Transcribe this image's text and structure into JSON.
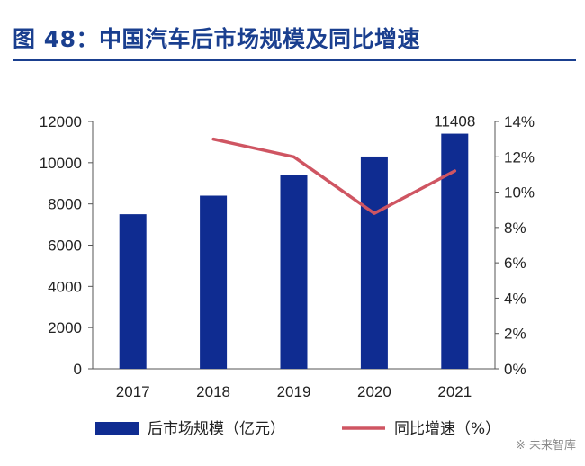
{
  "title": "图 48：中国汽车后市场规模及同比增速",
  "watermark": "未来智库",
  "colors": {
    "title": "#1a3f8f",
    "bar": "#0f2c91",
    "line": "#cf5562",
    "axis": "#555555"
  },
  "chart_data": {
    "type": "bar",
    "categories": [
      "2017",
      "2018",
      "2019",
      "2020",
      "2021"
    ],
    "series": [
      {
        "name": "后市场规模（亿元）",
        "type": "bar",
        "axis": "left",
        "values": [
          7500,
          8400,
          9400,
          10300,
          11408
        ]
      },
      {
        "name": "同比增速（%）",
        "type": "line",
        "axis": "right",
        "values": [
          null,
          13.0,
          12.0,
          8.8,
          11.2
        ]
      }
    ],
    "data_labels": [
      {
        "series": 0,
        "index": 4,
        "text": "11408"
      }
    ],
    "y_left": {
      "lim": [
        0,
        12000
      ],
      "ticks": [
        "0",
        "2000",
        "4000",
        "6000",
        "8000",
        "10000",
        "12000"
      ]
    },
    "y_right": {
      "lim": [
        0,
        14
      ],
      "ticks": [
        "0%",
        "2%",
        "4%",
        "6%",
        "8%",
        "10%",
        "12%",
        "14%"
      ]
    },
    "grid": false,
    "legend_position": "bottom"
  }
}
